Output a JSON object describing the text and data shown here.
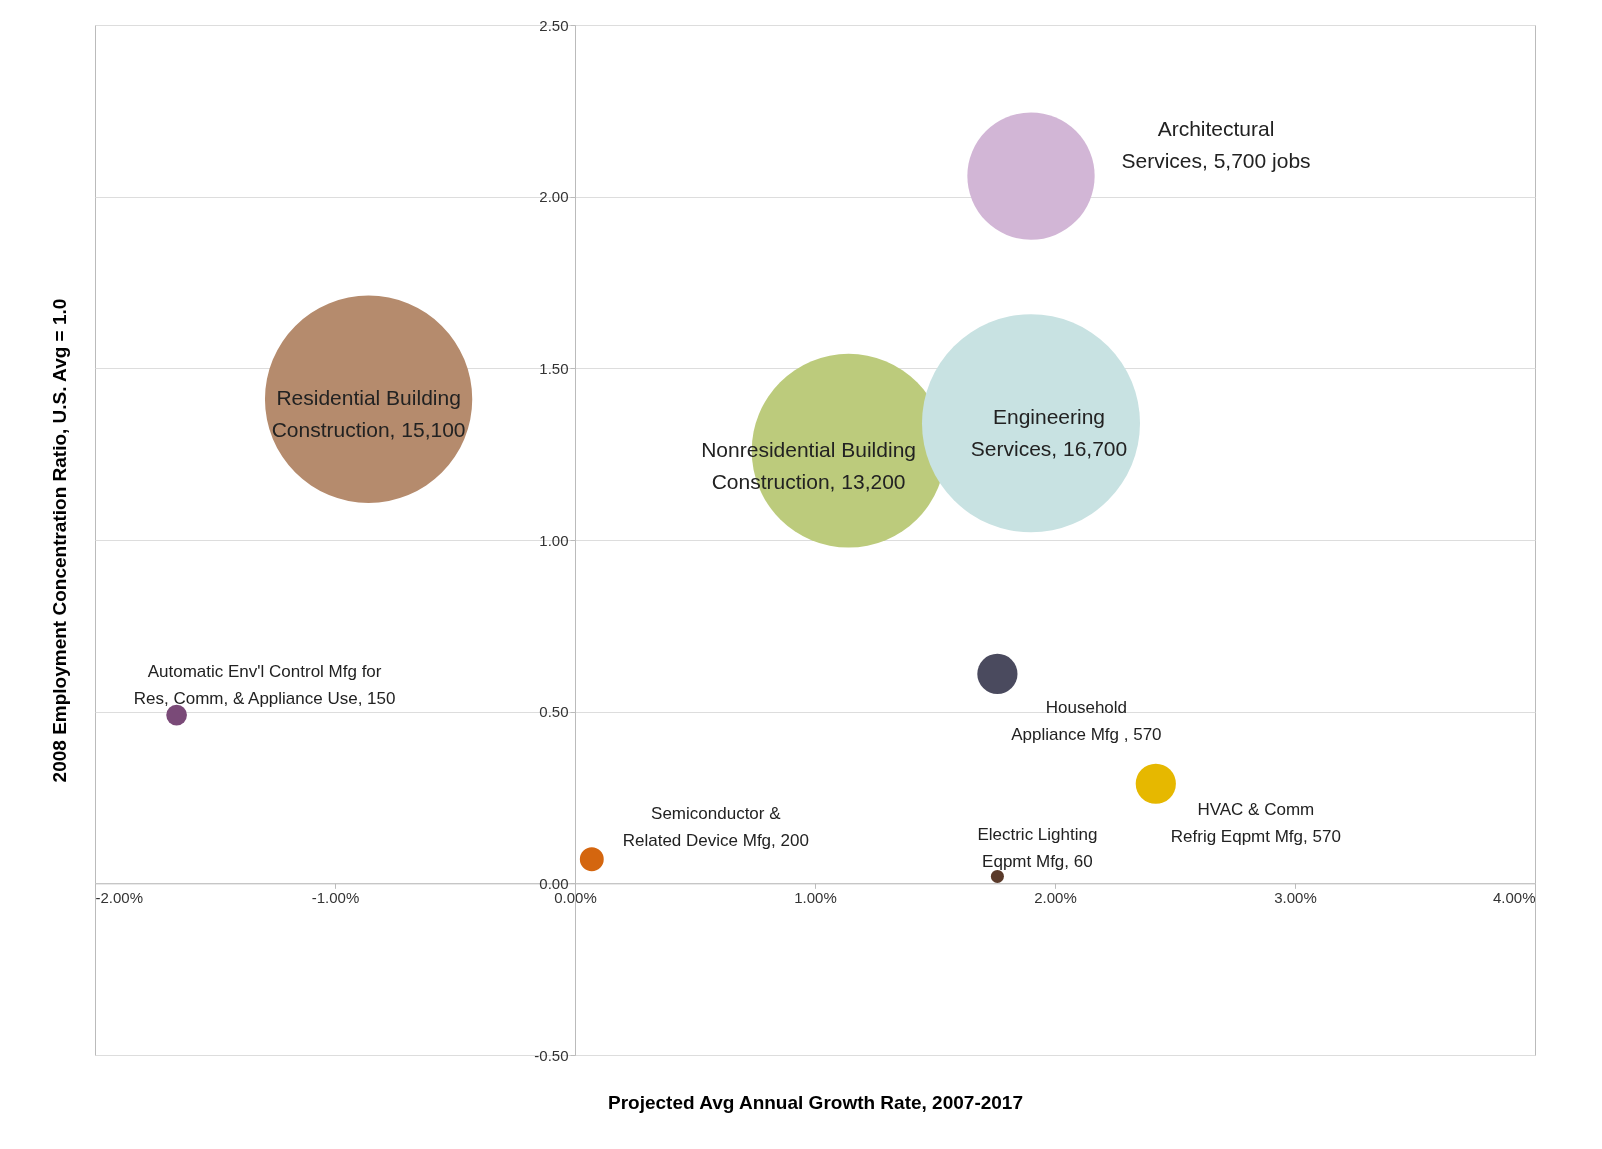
{
  "chart_data": {
    "type": "bubble",
    "xlabel": "Projected Avg Annual Growth Rate, 2007-2017",
    "ylabel": "2008 Employment Concentration Ratio, U.S. Avg = 1.0",
    "xlim": [
      -2,
      4
    ],
    "xticks": [
      {
        "value": -2,
        "label": "-2.00%"
      },
      {
        "value": -1,
        "label": "-1.00%"
      },
      {
        "value": 0,
        "label": "0.00%"
      },
      {
        "value": 1,
        "label": "1.00%"
      },
      {
        "value": 2,
        "label": "2.00%"
      },
      {
        "value": 3,
        "label": "3.00%"
      },
      {
        "value": 4,
        "label": "4.00%"
      }
    ],
    "ylim": [
      -0.5,
      2.5
    ],
    "yticks": [
      {
        "value": -0.5,
        "label": "-0.50"
      },
      {
        "value": 0,
        "label": "0.00"
      },
      {
        "value": 0.5,
        "label": "0.50"
      },
      {
        "value": 1,
        "label": "1.00"
      },
      {
        "value": 1.5,
        "label": "1.50"
      },
      {
        "value": 2,
        "label": "2.00"
      },
      {
        "value": 2.5,
        "label": "2.50"
      }
    ],
    "grid": "y",
    "legend": false,
    "series": [
      {
        "name": "Residential Building Construction, 15,100",
        "color": "#b58b6d",
        "x": [
          -0.86
        ],
        "values": [
          1.41
        ],
        "sizes": [
          0.904
        ]
      },
      {
        "name": "Nonresidential Building Construction, 13,200",
        "color": "#bccb7c",
        "x": [
          1.14
        ],
        "values": [
          1.26
        ],
        "sizes": [
          0.79
        ]
      },
      {
        "name": "Engineering Services, 16,700",
        "color": "#c8e2e2",
        "x": [
          1.9
        ],
        "values": [
          1.34
        ],
        "sizes": [
          1
        ]
      },
      {
        "name": "Architectural Services, 5,700 jobs",
        "color": "#d2b6d6",
        "x": [
          1.9
        ],
        "values": [
          2.06
        ],
        "sizes": [
          0.341
        ]
      },
      {
        "name": "Household Appliance Mfg , 570",
        "color": "#4a4a5e",
        "x": [
          1.76
        ],
        "values": [
          0.61
        ],
        "sizes": [
          0.034
        ]
      },
      {
        "name": "HVAC & Comm Refrig Eqpmt Mfg, 570",
        "color": "#e6b800",
        "x": [
          2.42
        ],
        "values": [
          0.29
        ],
        "sizes": [
          0.034
        ]
      },
      {
        "name": "Semiconductor & Related Device Mfg, 200",
        "color": "#d4660f",
        "x": [
          0.07
        ],
        "values": [
          0.07
        ],
        "sizes": [
          0.012
        ]
      },
      {
        "name": "Electric Lighting Eqpmt Mfg, 60",
        "color": "#5a3a2a",
        "x": [
          1.76
        ],
        "values": [
          0.02
        ],
        "sizes": [
          0.0036
        ]
      },
      {
        "name": "Automatic Env'l Control Mfg for Res, Comm, & Appliance Use, 150",
        "color": "#7a4a78",
        "x": [
          -1.66
        ],
        "values": [
          0.49
        ],
        "sizes": [
          0.009
        ]
      }
    ]
  }
}
